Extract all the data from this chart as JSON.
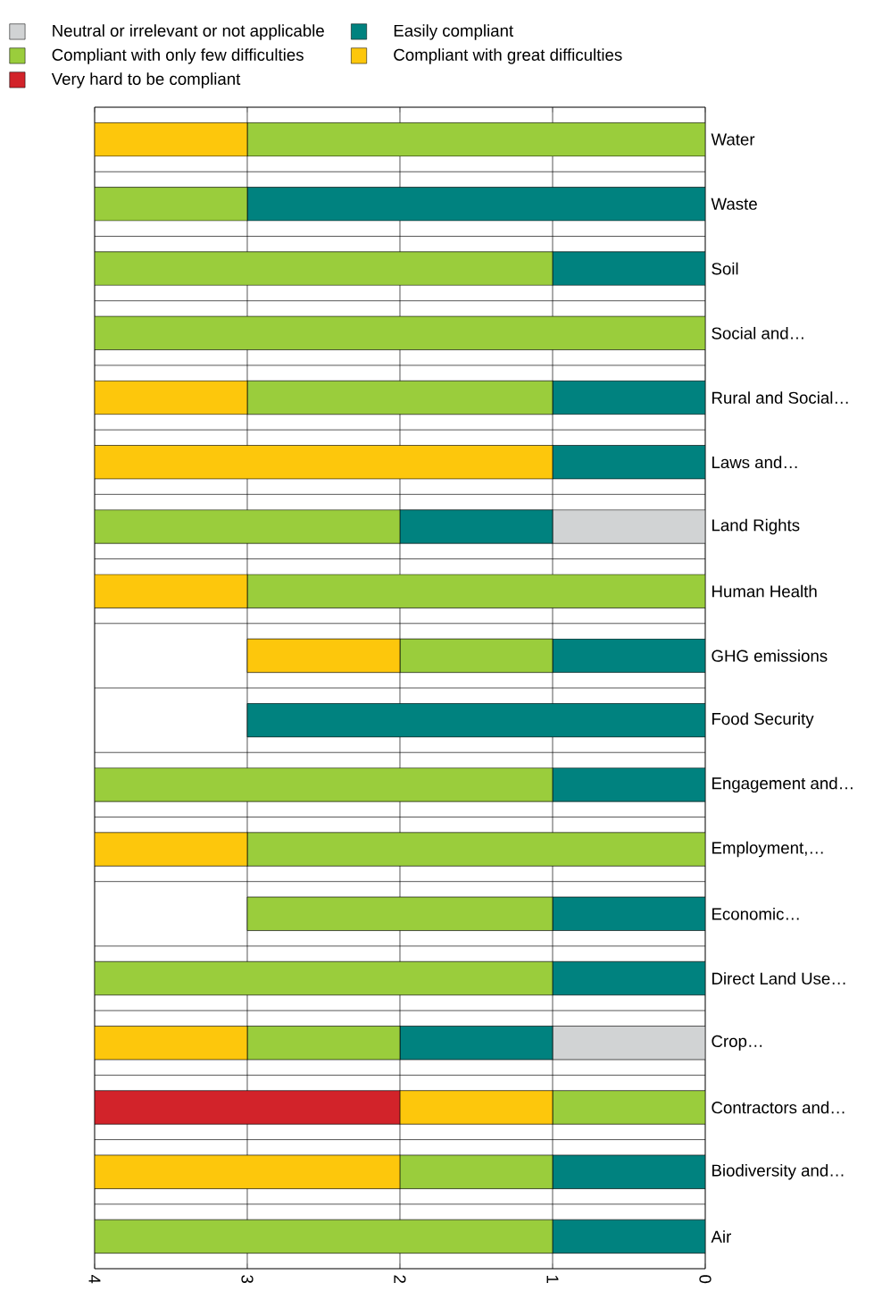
{
  "chart_data": {
    "type": "bar",
    "orientation": "horizontal",
    "stacked": true,
    "categories": [
      "Water",
      "Waste",
      "Soil",
      "Social and…",
      "Rural and Social…",
      "Laws and…",
      "Land Rights",
      "Human Health",
      "GHG emissions",
      "Food Security",
      "Engagement and…",
      "Employment,…",
      "Economic…",
      "Direct  Land Use…",
      "Crop…",
      "Contractors and…",
      "Biodiversity and…",
      "Air"
    ],
    "series": [
      {
        "name": "Neutral or irrelevant or not applicable",
        "color": "#d1d3d4",
        "values": [
          null,
          null,
          null,
          null,
          null,
          null,
          1,
          null,
          null,
          null,
          null,
          null,
          null,
          null,
          1,
          null,
          null,
          null
        ]
      },
      {
        "name": "Easily compliant",
        "color": "#00827f",
        "values": [
          null,
          3,
          1,
          null,
          1,
          1,
          1,
          null,
          1,
          3,
          1,
          null,
          1,
          1,
          1,
          null,
          1,
          1
        ]
      },
      {
        "name": "Compliant with only few difficulties",
        "color": "#9acd3c",
        "values": [
          3,
          1,
          3,
          4,
          2,
          null,
          2,
          3,
          1,
          null,
          3,
          3,
          2,
          3,
          1,
          1,
          1,
          3
        ]
      },
      {
        "name": "Compliant with great difficulties",
        "color": "#fdc70c",
        "values": [
          1,
          null,
          null,
          null,
          1,
          3,
          null,
          1,
          1,
          null,
          null,
          1,
          null,
          null,
          1,
          1,
          2,
          null
        ]
      },
      {
        "name": "Very hard to be compliant",
        "color": "#d2232a",
        "values": [
          null,
          null,
          null,
          null,
          null,
          null,
          null,
          null,
          null,
          null,
          null,
          null,
          null,
          null,
          null,
          2,
          null,
          null
        ]
      }
    ],
    "xlim": [
      4,
      0
    ],
    "xticks": [
      0,
      1,
      2,
      3,
      4
    ],
    "grid": true,
    "legend": "top"
  }
}
